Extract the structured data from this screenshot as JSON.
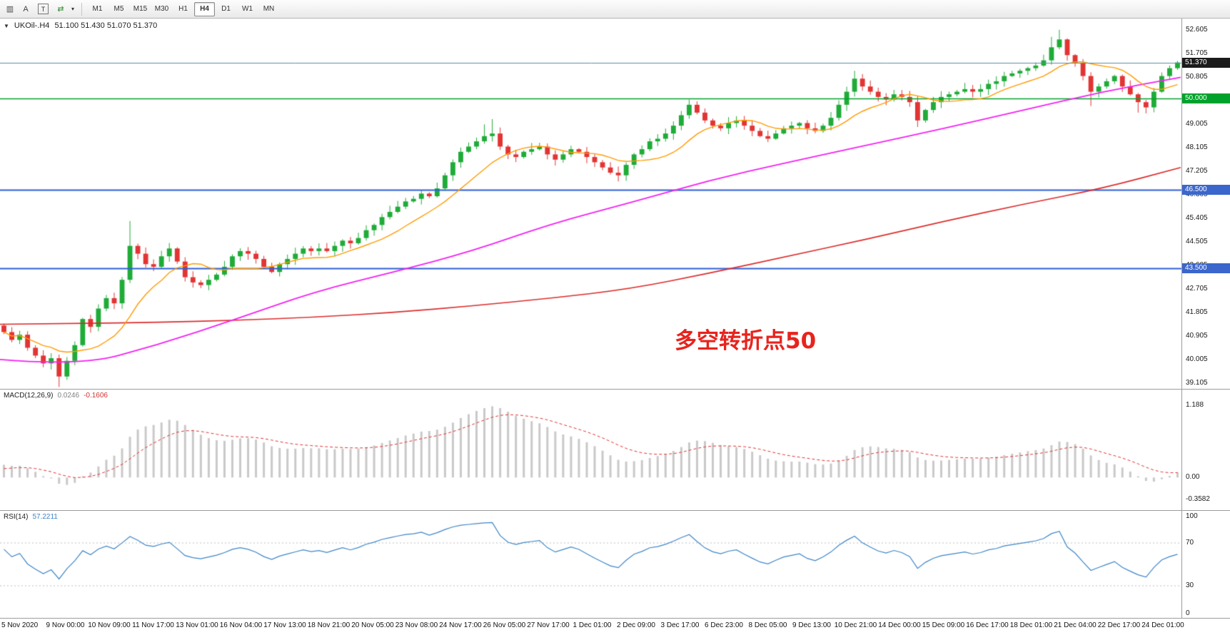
{
  "toolbar": {
    "icons": [
      {
        "name": "chart-windows-icon",
        "glyph": "▥"
      },
      {
        "name": "cursor-tool-icon",
        "glyph": "A"
      },
      {
        "name": "text-tool-icon",
        "glyph": "T"
      },
      {
        "name": "auto-trade-icon",
        "glyph": "⇄",
        "color": "#2e8b2e"
      },
      {
        "name": "dropdown-caret-icon",
        "glyph": "▾"
      }
    ],
    "timeframes": [
      {
        "label": "M1",
        "active": false
      },
      {
        "label": "M5",
        "active": false
      },
      {
        "label": "M15",
        "active": false
      },
      {
        "label": "M30",
        "active": false
      },
      {
        "label": "H1",
        "active": false
      },
      {
        "label": "H4",
        "active": true
      },
      {
        "label": "D1",
        "active": false
      },
      {
        "label": "W1",
        "active": false
      },
      {
        "label": "MN",
        "active": false
      }
    ]
  },
  "chart": {
    "symbol_title": "UKOil-.H4",
    "ohlc": "51.100 51.430 51.070 51.370"
  },
  "macd": {
    "label": "MACD(12,26,9)",
    "value_main": "0.0246",
    "value_signal": "-0.1606",
    "axis": [
      {
        "label": "1.188",
        "value": 1.188
      },
      {
        "label": "0.00",
        "value": 0
      },
      {
        "label": "-0.3582",
        "value": -0.3582
      }
    ]
  },
  "rsi": {
    "label": "RSI(14)",
    "value": "57.2211",
    "axis": [
      {
        "label": "100",
        "value": 100
      },
      {
        "label": "70",
        "value": 70
      },
      {
        "label": "30",
        "value": 30
      },
      {
        "label": "0",
        "value": 0
      }
    ],
    "levels": [
      70,
      30
    ]
  },
  "price_axis": {
    "labels": [
      "52.605",
      "51.705",
      "50.805",
      "49.905",
      "49.005",
      "48.105",
      "47.205",
      "46.305",
      "45.405",
      "44.505",
      "43.605",
      "42.705",
      "41.805",
      "40.905",
      "40.005",
      "39.105"
    ],
    "badges": [
      {
        "value": "51.370",
        "price": 51.37,
        "bg": "#1b1b1b"
      },
      {
        "value": "50.000",
        "price": 50.0,
        "bg": "#00a22b"
      },
      {
        "value": "46.500",
        "price": 46.5,
        "bg": "#3b66cc"
      },
      {
        "value": "43.500",
        "price": 43.5,
        "bg": "#3b66cc"
      }
    ]
  },
  "time_axis": {
    "labels": [
      "5 Nov 2020",
      "9 Nov 00:00",
      "10 Nov 09:00",
      "11 Nov 17:00",
      "13 Nov 01:00",
      "16 Nov 04:00",
      "17 Nov 13:00",
      "18 Nov 21:00",
      "20 Nov 05:00",
      "23 Nov 08:00",
      "24 Nov 17:00",
      "26 Nov 05:00",
      "27 Nov 17:00",
      "1 Dec 01:00",
      "2 Dec 09:00",
      "3 Dec 17:00",
      "6 Dec 23:00",
      "8 Dec 05:00",
      "9 Dec 13:00",
      "10 Dec 21:00",
      "14 Dec 00:00",
      "15 Dec 09:00",
      "16 Dec 17:00",
      "18 Dec 01:00",
      "21 Dec 04:00",
      "22 Dec 17:00",
      "24 Dec 01:00"
    ]
  },
  "chart_data": {
    "type": "candlestick",
    "symbol": "UKOil-",
    "timeframe": "H4",
    "price_range": [
      38.85,
      53.05
    ],
    "open_first": 41.3,
    "candles_close": [
      41.05,
      40.75,
      40.95,
      40.45,
      40.15,
      39.85,
      40.05,
      39.35,
      39.95,
      40.55,
      41.55,
      41.25,
      41.95,
      42.35,
      42.15,
      43.05,
      44.35,
      44.05,
      43.65,
      43.55,
      43.95,
      44.25,
      43.75,
      43.15,
      42.95,
      42.85,
      43.05,
      43.25,
      43.55,
      43.95,
      44.15,
      44.05,
      43.85,
      43.55,
      43.35,
      43.65,
      43.85,
      44.05,
      44.25,
      44.15,
      44.25,
      44.15,
      44.35,
      44.55,
      44.45,
      44.65,
      44.95,
      45.15,
      45.45,
      45.65,
      45.85,
      46.05,
      46.15,
      46.35,
      46.25,
      46.55,
      47.05,
      47.55,
      47.95,
      48.15,
      48.35,
      48.55,
      48.65,
      48.15,
      47.85,
      47.75,
      47.95,
      48.05,
      48.15,
      47.85,
      47.65,
      47.85,
      48.05,
      47.95,
      47.75,
      47.55,
      47.35,
      47.15,
      47.05,
      47.45,
      47.85,
      48.05,
      48.35,
      48.45,
      48.65,
      48.95,
      49.35,
      49.75,
      49.45,
      49.15,
      48.95,
      48.85,
      49.05,
      49.15,
      48.95,
      48.75,
      48.55,
      48.45,
      48.65,
      48.85,
      48.95,
      49.05,
      48.85,
      48.75,
      48.95,
      49.25,
      49.75,
      50.25,
      50.75,
      50.45,
      50.25,
      50.05,
      49.95,
      50.15,
      50.05,
      49.85,
      49.15,
      49.55,
      49.85,
      50.05,
      50.15,
      50.25,
      50.35,
      50.25,
      50.35,
      50.55,
      50.65,
      50.85,
      50.95,
      51.05,
      51.15,
      51.25,
      51.45,
      51.95,
      52.25,
      51.65,
      51.35,
      50.85,
      50.25,
      50.45,
      50.65,
      50.85,
      50.45,
      50.15,
      49.85,
      49.65,
      50.25,
      50.85,
      51.15,
      51.37
    ],
    "spikes": [
      {
        "i": 7,
        "low": 38.95
      },
      {
        "i": 16,
        "high": 45.3
      },
      {
        "i": 61,
        "high": 49.0
      },
      {
        "i": 62,
        "high": 49.2
      },
      {
        "i": 87,
        "high": 49.95
      },
      {
        "i": 108,
        "high": 51.05
      },
      {
        "i": 116,
        "low": 48.9
      },
      {
        "i": 133,
        "high": 52.35
      },
      {
        "i": 134,
        "high": 52.62
      },
      {
        "i": 138,
        "low": 49.7
      },
      {
        "i": 144,
        "low": 49.45
      }
    ],
    "warmup_closes": [
      40.2,
      40.0,
      40.3,
      40.1,
      40.4,
      40.2,
      40.5,
      40.6,
      40.4,
      40.7,
      40.8,
      40.6,
      40.9,
      41.0,
      40.9,
      41.05
    ],
    "ma_step": 10,
    "ma_red": [
      41.35,
      41.38,
      41.42,
      41.5,
      41.62,
      41.8,
      42.05,
      42.35,
      42.7,
      43.3,
      43.95,
      44.6,
      45.3,
      45.95,
      46.55,
      47.35
    ],
    "ma_magenta": [
      40.0,
      39.75,
      40.55,
      41.55,
      42.6,
      43.35,
      44.15,
      45.2,
      46.0,
      46.85,
      47.55,
      48.2,
      48.85,
      49.55,
      50.25,
      50.8
    ],
    "orange_ma_period": 10,
    "hlines": [
      {
        "price": 50.0,
        "color": "#00a32a",
        "width": 1.6,
        "label": "50.000"
      },
      {
        "price": 46.5,
        "color": "#2e5fd4",
        "width": 1.8,
        "label": "46.500"
      },
      {
        "price": 43.5,
        "color": "#2e5fd4",
        "width": 1.8,
        "label": "43.500"
      }
    ],
    "current_price": 51.37,
    "current_price_color": "#528fa2",
    "macd_range": [
      -0.55,
      1.45
    ],
    "macd_params": "12,26,9",
    "rsi_params": "14",
    "colors": {
      "up": "#1fab38",
      "down": "#e23434",
      "macd_hist": "#c9c9c9",
      "macd_signal": "#e03030",
      "rsi_line": "#3d85c8",
      "rsi_level": "#bdbdbd",
      "ma_fast": "#ff9b00",
      "ma_mid": "#f321f3",
      "ma_slow": "#dd2b2b"
    },
    "annotation": {
      "text": "多空转折点50",
      "color": "#e8231d",
      "price": 41.0
    }
  }
}
